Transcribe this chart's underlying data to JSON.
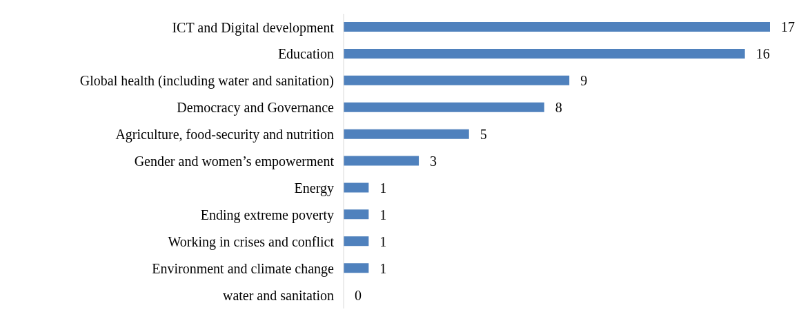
{
  "chart_data": {
    "type": "bar",
    "orientation": "horizontal",
    "categories": [
      "ICT and Digital development",
      "Education",
      "Global health (including water and sanitation)",
      "Democracy and Governance",
      "Agriculture, food-security and nutrition",
      "Gender and women’s empowerment",
      "Energy",
      "Ending extreme poverty",
      "Working in crises and conflict",
      "Environment and climate change",
      "water and sanitation"
    ],
    "values": [
      17,
      16,
      9,
      8,
      5,
      3,
      1,
      1,
      1,
      1,
      0
    ],
    "color": "#4f81bd",
    "data_labels": true,
    "grid": false,
    "legend": false,
    "tick_labels": "y"
  }
}
